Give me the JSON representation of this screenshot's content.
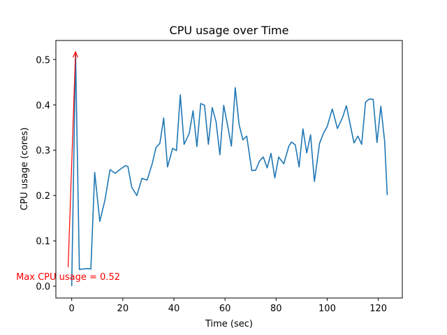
{
  "chart_data": {
    "type": "line",
    "title": "CPU usage over Time",
    "xlabel": "Time (sec)",
    "ylabel": "CPU usage (cores)",
    "xlim": [
      -6.2,
      129.4
    ],
    "ylim": [
      -0.026,
      0.542
    ],
    "xticks": [
      0,
      20,
      40,
      60,
      80,
      100,
      120
    ],
    "xtick_labels": [
      "0",
      "20",
      "40",
      "60",
      "80",
      "100",
      "120"
    ],
    "yticks": [
      0.0,
      0.1,
      0.2,
      0.3,
      0.4,
      0.5
    ],
    "ytick_labels": [
      "0.0",
      "0.1",
      "0.2",
      "0.3",
      "0.4",
      "0.5"
    ],
    "grid": false,
    "line_color": "#1f77b4",
    "series": [
      {
        "x": [
          0,
          1.5,
          3,
          6,
          7.5,
          9,
          11,
          13,
          15,
          17,
          19,
          21,
          22,
          23.5,
          25.5,
          27.5,
          29.5,
          31.5,
          33,
          34.5,
          36,
          37.5,
          39.5,
          41,
          42.5,
          44,
          46,
          47.5,
          49,
          50.5,
          52,
          53.5,
          55,
          56.5,
          58,
          59.5,
          61,
          62.5,
          64,
          65.5,
          67,
          68.5,
          70.5,
          72,
          73.5,
          75,
          76.5,
          78,
          79.5,
          81,
          83,
          85,
          86,
          87.5,
          89,
          90.5,
          92,
          93.5,
          95,
          97,
          98.5,
          100,
          102,
          104,
          106,
          107.5,
          109,
          110.5,
          112,
          113.5,
          115,
          116.5,
          118,
          119.5,
          121,
          122.5,
          123.5
        ],
        "y": [
          0.0,
          0.517,
          0.037,
          0.039,
          0.038,
          0.251,
          0.143,
          0.19,
          0.257,
          0.249,
          0.258,
          0.266,
          0.264,
          0.218,
          0.2,
          0.238,
          0.234,
          0.27,
          0.306,
          0.315,
          0.371,
          0.263,
          0.304,
          0.299,
          0.422,
          0.313,
          0.337,
          0.387,
          0.308,
          0.403,
          0.399,
          0.313,
          0.394,
          0.363,
          0.29,
          0.399,
          0.355,
          0.309,
          0.438,
          0.357,
          0.323,
          0.331,
          0.255,
          0.256,
          0.276,
          0.285,
          0.261,
          0.293,
          0.239,
          0.285,
          0.27,
          0.309,
          0.318,
          0.312,
          0.263,
          0.347,
          0.294,
          0.334,
          0.231,
          0.315,
          0.337,
          0.352,
          0.391,
          0.348,
          0.372,
          0.398,
          0.357,
          0.316,
          0.331,
          0.313,
          0.406,
          0.413,
          0.412,
          0.317,
          0.397,
          0.319,
          0.201
        ]
      }
    ],
    "annotation": {
      "text": "Max CPU usage = 0.52",
      "color": "#ff0000",
      "point": [
        1.5,
        0.517
      ],
      "text_anchor_point": [
        -1.4,
        0.042
      ]
    }
  }
}
